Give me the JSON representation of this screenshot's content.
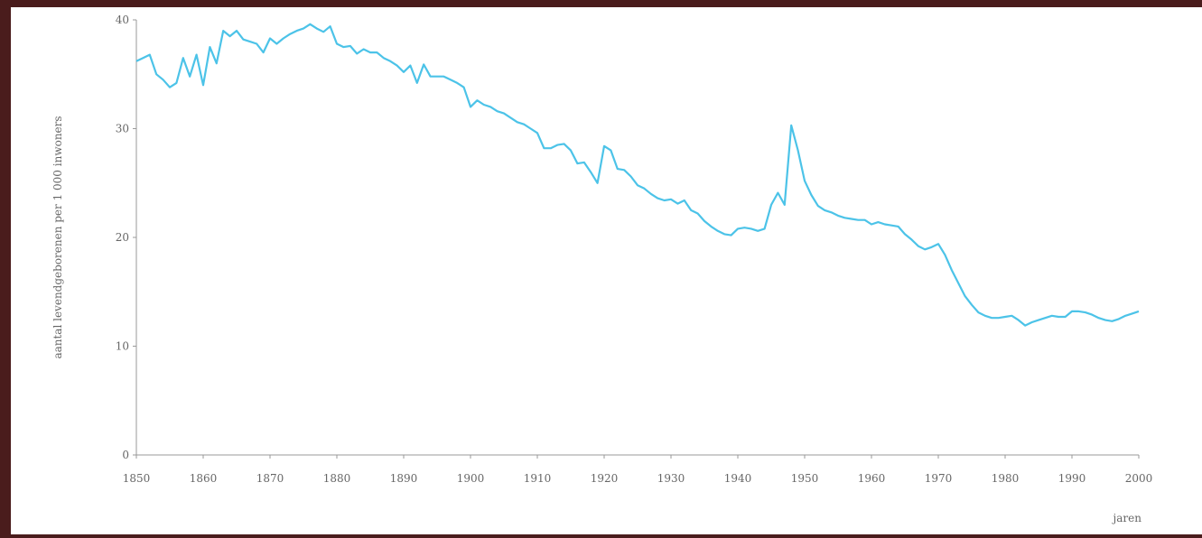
{
  "colors": {
    "line": "#4cc3e8",
    "axis": "#999999",
    "text": "#666666",
    "border": "#4a1c1c",
    "background": "#ffffff"
  },
  "chart_data": {
    "type": "line",
    "title": "",
    "xlabel": "jaren",
    "ylabel": "aantal levendgeborenen per 1 000 inwoners",
    "xlim": [
      1850,
      2000
    ],
    "ylim": [
      0,
      40
    ],
    "x_ticks": [
      "1850",
      "1860",
      "1870",
      "1880",
      "1890",
      "1900",
      "1910",
      "1920",
      "1930",
      "1940",
      "1950",
      "1960",
      "1970",
      "1980",
      "1990",
      "2000"
    ],
    "y_ticks": [
      "0",
      "10",
      "20",
      "30",
      "40"
    ],
    "grid": false,
    "legend": "none",
    "series": [
      {
        "x": [
          1850,
          1851,
          1852,
          1853,
          1854,
          1855,
          1856,
          1857,
          1858,
          1859,
          1860,
          1861,
          1862,
          1863,
          1864,
          1865,
          1866,
          1867,
          1868,
          1869,
          1870,
          1871,
          1872,
          1873,
          1874,
          1875,
          1876,
          1877,
          1878,
          1879,
          1880,
          1881,
          1882,
          1883,
          1884,
          1885,
          1886,
          1887,
          1888,
          1889,
          1890,
          1891,
          1892,
          1893,
          1894,
          1895,
          1896,
          1897,
          1898,
          1899,
          1900,
          1901,
          1902,
          1903,
          1904,
          1905,
          1906,
          1907,
          1908,
          1909,
          1910,
          1911,
          1912,
          1913,
          1914,
          1915,
          1916,
          1917,
          1918,
          1919,
          1920,
          1921,
          1922,
          1923,
          1924,
          1925,
          1926,
          1927,
          1928,
          1929,
          1930,
          1931,
          1932,
          1933,
          1934,
          1935,
          1936,
          1937,
          1938,
          1939,
          1940,
          1941,
          1942,
          1943,
          1944,
          1945,
          1946,
          1947,
          1948,
          1949,
          1950,
          1951,
          1952,
          1953,
          1954,
          1955,
          1956,
          1957,
          1958,
          1959,
          1960,
          1961,
          1962,
          1963,
          1964,
          1965,
          1966,
          1967,
          1968,
          1969,
          1970,
          1971,
          1972,
          1973,
          1974,
          1975,
          1976,
          1977,
          1978,
          1979,
          1980,
          1981,
          1982,
          1983,
          1984,
          1985,
          1986,
          1987,
          1988,
          1989,
          1990,
          1991,
          1992,
          1993,
          1994,
          1995,
          1996,
          1997,
          1998,
          1999,
          2000
        ],
        "values": [
          36.2,
          36.5,
          36.8,
          35.0,
          34.5,
          33.8,
          34.2,
          36.5,
          34.8,
          36.8,
          34.0,
          37.5,
          36.0,
          39.0,
          38.5,
          39.0,
          38.2,
          38.0,
          37.8,
          37.0,
          38.3,
          37.8,
          38.3,
          38.7,
          39.0,
          39.2,
          39.6,
          39.2,
          38.9,
          39.4,
          37.8,
          37.5,
          37.6,
          36.9,
          37.3,
          37.0,
          37.0,
          36.5,
          36.2,
          35.8,
          35.2,
          35.8,
          34.2,
          35.9,
          34.8,
          34.8,
          34.8,
          34.5,
          34.2,
          33.8,
          32.0,
          32.6,
          32.2,
          32.0,
          31.6,
          31.4,
          31.0,
          30.6,
          30.4,
          30.0,
          29.6,
          28.2,
          28.2,
          28.5,
          28.6,
          28.0,
          26.8,
          26.9,
          26.0,
          25.0,
          28.4,
          28.0,
          26.3,
          26.2,
          25.6,
          24.8,
          24.5,
          24.0,
          23.6,
          23.4,
          23.5,
          23.1,
          23.4,
          22.5,
          22.2,
          21.5,
          21.0,
          20.6,
          20.3,
          20.2,
          20.8,
          20.9,
          20.8,
          20.6,
          20.8,
          23.0,
          24.1,
          23.0,
          30.3,
          28.0,
          25.2,
          23.9,
          22.9,
          22.5,
          22.3,
          22.0,
          21.8,
          21.7,
          21.6,
          21.6,
          21.2,
          21.4,
          21.2,
          21.1,
          21.0,
          20.3,
          19.8,
          19.2,
          18.9,
          19.1,
          19.4,
          18.4,
          17.0,
          15.8,
          14.6,
          13.8,
          13.1,
          12.8,
          12.6,
          12.6,
          12.7,
          12.8,
          12.4,
          11.9,
          12.2,
          12.4,
          12.6,
          12.8,
          12.7,
          12.7,
          13.2,
          13.2,
          13.1,
          12.9,
          12.6,
          12.4,
          12.3,
          12.5,
          12.8,
          13.0,
          13.2
        ]
      }
    ]
  }
}
